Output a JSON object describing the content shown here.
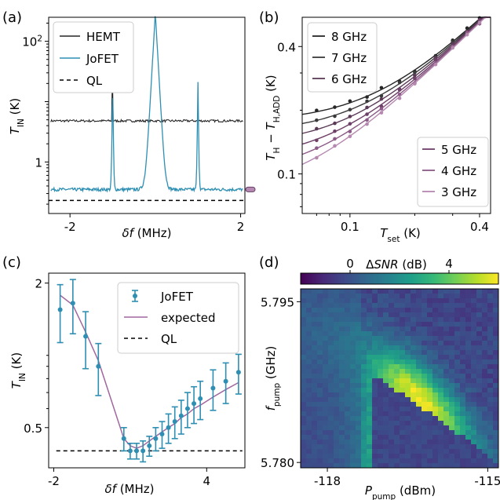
{
  "panels": {
    "a": "(a)",
    "b": "(b)",
    "c": "(c)",
    "d": "(d)"
  },
  "colors": {
    "hemt": "#262626",
    "jofet": "#2e8fb3",
    "ql": "#000000",
    "expected": "#a0679f",
    "series_b": [
      "#262626",
      "#3a3a3a",
      "#5b3a58",
      "#6e3f67",
      "#8b5a86",
      "#b588b0"
    ],
    "viridis": [
      "#440154",
      "#482878",
      "#3e4989",
      "#31688e",
      "#26828e",
      "#1f9e89",
      "#35b779",
      "#6ece58",
      "#b5de2b",
      "#fde725"
    ]
  },
  "chart_data": [
    {
      "type": "line",
      "panel": "(a)",
      "xlabel": "δf (MHz)",
      "ylabel": "T_IN (K)",
      "yscale": "log",
      "xlim": [
        -2.5,
        2.1
      ],
      "ylim": [
        0.14,
        250
      ],
      "xticks": [
        -2,
        2
      ],
      "yticks": [
        {
          "value": 1,
          "label": "1"
        },
        {
          "value": 100,
          "label": "10^2"
        }
      ],
      "legend": "top-left",
      "series": [
        {
          "name": "HEMT",
          "baseline": 4.8,
          "spikes": [
            {
              "x": -1.0,
              "y": 30
            }
          ]
        },
        {
          "name": "JoFET",
          "baseline": 0.35,
          "spikes": [
            {
              "x": -1.0,
              "y": 30
            },
            {
              "x": 0.0,
              "y": 300
            },
            {
              "x": 1.0,
              "y": 30
            }
          ]
        },
        {
          "name": "QL",
          "value": 0.23
        }
      ]
    },
    {
      "type": "line",
      "panel": "(b)",
      "xlabel": "T_set (K)",
      "ylabel": "T_H − T_H,ADD (K)",
      "xscale": "log",
      "yscale": "log",
      "xlim": [
        0.06,
        0.45
      ],
      "ylim": [
        0.065,
        0.55
      ],
      "xticks": [
        0.1,
        0.4
      ],
      "yticks": [
        0.1,
        0.4
      ],
      "legend": [
        "top-left",
        "bottom-right"
      ],
      "series": [
        {
          "name": "8 GHz",
          "floor": 0.175
        },
        {
          "name": "7 GHz",
          "floor": 0.155
        },
        {
          "name": "6 GHz",
          "floor": 0.135
        },
        {
          "name": "5 GHz",
          "floor": 0.115
        },
        {
          "name": "4 GHz",
          "floor": 0.097
        },
        {
          "name": "3 GHz",
          "floor": 0.08
        }
      ],
      "points_x": [
        0.07,
        0.085,
        0.1,
        0.12,
        0.14,
        0.17,
        0.2,
        0.25,
        0.3,
        0.35,
        0.4
      ]
    },
    {
      "type": "scatter",
      "panel": "(c)",
      "xlabel": "δf (MHz)",
      "ylabel": "T_IN (K)",
      "yscale": "log",
      "xlim": [
        -2.2,
        5.5
      ],
      "ylim": [
        0.34,
        2.2
      ],
      "xticks": [
        -2,
        4
      ],
      "yticks": [
        0.5,
        2
      ],
      "legend": "top-right",
      "series": [
        {
          "name": "JoFET",
          "x": [
            -1.75,
            -1.25,
            -0.75,
            -0.25,
            0.75,
            1.0,
            1.25,
            1.5,
            1.75,
            2.0,
            2.25,
            2.5,
            2.75,
            3.0,
            3.25,
            3.5,
            3.75,
            4.25,
            4.75,
            5.25
          ],
          "y": [
            1.55,
            1.65,
            1.2,
            0.9,
            0.45,
            0.4,
            0.4,
            0.4,
            0.42,
            0.45,
            0.47,
            0.5,
            0.53,
            0.56,
            0.6,
            0.63,
            0.66,
            0.73,
            0.78,
            0.85
          ],
          "err": [
            0.42,
            0.42,
            0.32,
            0.22,
            0.05,
            0.03,
            0.03,
            0.04,
            0.04,
            0.05,
            0.06,
            0.07,
            0.08,
            0.09,
            0.1,
            0.11,
            0.12,
            0.14,
            0.15,
            0.16
          ]
        },
        {
          "name": "expected",
          "x": [
            -1.75,
            -1.25,
            -0.75,
            -0.25,
            0.75,
            1.0,
            1.25,
            1.5,
            1.75,
            2.0,
            2.25,
            2.5,
            2.75,
            3.0,
            3.25,
            3.5,
            3.75,
            4.25,
            4.75,
            5.25
          ],
          "y": [
            1.78,
            1.62,
            1.25,
            0.95,
            0.45,
            0.42,
            0.41,
            0.42,
            0.44,
            0.46,
            0.48,
            0.5,
            0.52,
            0.55,
            0.57,
            0.6,
            0.62,
            0.67,
            0.72,
            0.77
          ]
        },
        {
          "name": "QL",
          "value": 0.4
        }
      ]
    },
    {
      "type": "heatmap",
      "panel": "(d)",
      "xlabel": "P_pump (dBm)",
      "ylabel": "f_pump (GHz)",
      "colorbar_label": "ΔSNR (dB)",
      "colorbar_ticks": [
        0,
        4
      ],
      "colorbar_range": [
        -2,
        6
      ],
      "xlim": [
        -118.5,
        -114.8
      ],
      "ylim": [
        5.7795,
        5.7962
      ],
      "xticks": [
        -118,
        -115
      ],
      "yticks": [
        5.78,
        5.795
      ]
    }
  ]
}
